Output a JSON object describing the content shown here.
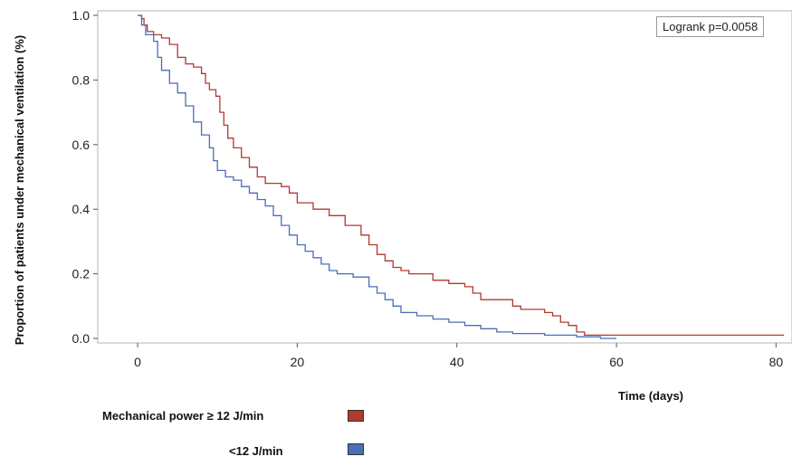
{
  "chart_data": {
    "type": "line",
    "ylabel": "Proportion of patients under mechanical ventilation (%)",
    "xlabel": "Time (days)",
    "xlim": [
      -5,
      82
    ],
    "ylim": [
      0,
      1.0
    ],
    "x_ticks": [
      0,
      20,
      40,
      60,
      80
    ],
    "y_ticks": [
      0.0,
      0.2,
      0.4,
      0.6,
      0.8,
      1.0
    ],
    "x_tick_labels": [
      "0",
      "20",
      "40",
      "60",
      "80"
    ],
    "y_tick_labels": [
      "0.0",
      "0.2",
      "0.4",
      "0.6",
      "0.8",
      "1.0"
    ],
    "annotation": "Logrank p=0.0058",
    "grid": false,
    "series": [
      {
        "name": "Mechanical power ≥ 12 J/min",
        "color": "#b03a2e",
        "step": true,
        "points": [
          [
            0,
            1.0
          ],
          [
            0.5,
            0.99
          ],
          [
            0.8,
            0.97
          ],
          [
            1.2,
            0.95
          ],
          [
            2,
            0.94
          ],
          [
            3,
            0.93
          ],
          [
            4,
            0.91
          ],
          [
            5,
            0.87
          ],
          [
            6,
            0.85
          ],
          [
            7,
            0.84
          ],
          [
            8,
            0.82
          ],
          [
            8.5,
            0.79
          ],
          [
            9,
            0.77
          ],
          [
            9.8,
            0.75
          ],
          [
            10.3,
            0.7
          ],
          [
            10.8,
            0.66
          ],
          [
            11.3,
            0.62
          ],
          [
            12,
            0.59
          ],
          [
            13,
            0.56
          ],
          [
            14,
            0.53
          ],
          [
            15,
            0.5
          ],
          [
            16,
            0.48
          ],
          [
            18,
            0.47
          ],
          [
            19,
            0.45
          ],
          [
            20,
            0.42
          ],
          [
            22,
            0.4
          ],
          [
            24,
            0.38
          ],
          [
            26,
            0.35
          ],
          [
            28,
            0.32
          ],
          [
            29,
            0.29
          ],
          [
            30,
            0.26
          ],
          [
            31,
            0.24
          ],
          [
            32,
            0.22
          ],
          [
            33,
            0.21
          ],
          [
            34,
            0.2
          ],
          [
            37,
            0.18
          ],
          [
            39,
            0.17
          ],
          [
            41,
            0.16
          ],
          [
            42,
            0.14
          ],
          [
            43,
            0.12
          ],
          [
            47,
            0.1
          ],
          [
            48,
            0.09
          ],
          [
            51,
            0.08
          ],
          [
            52,
            0.07
          ],
          [
            53,
            0.05
          ],
          [
            54,
            0.04
          ],
          [
            55,
            0.02
          ],
          [
            56,
            0.01
          ],
          [
            81,
            0.01
          ]
        ]
      },
      {
        "name": "<12 J/min",
        "color": "#4a6fb8",
        "step": true,
        "points": [
          [
            0,
            1.0
          ],
          [
            0.5,
            0.97
          ],
          [
            1,
            0.94
          ],
          [
            2,
            0.92
          ],
          [
            2.5,
            0.87
          ],
          [
            3,
            0.83
          ],
          [
            4,
            0.79
          ],
          [
            5,
            0.76
          ],
          [
            6,
            0.72
          ],
          [
            7,
            0.67
          ],
          [
            8,
            0.63
          ],
          [
            9,
            0.59
          ],
          [
            9.5,
            0.55
          ],
          [
            10,
            0.52
          ],
          [
            11,
            0.5
          ],
          [
            12,
            0.49
          ],
          [
            13,
            0.47
          ],
          [
            14,
            0.45
          ],
          [
            15,
            0.43
          ],
          [
            16,
            0.41
          ],
          [
            17,
            0.38
          ],
          [
            18,
            0.35
          ],
          [
            19,
            0.32
          ],
          [
            20,
            0.29
          ],
          [
            21,
            0.27
          ],
          [
            22,
            0.25
          ],
          [
            23,
            0.23
          ],
          [
            24,
            0.21
          ],
          [
            25,
            0.2
          ],
          [
            27,
            0.19
          ],
          [
            29,
            0.16
          ],
          [
            30,
            0.14
          ],
          [
            31,
            0.12
          ],
          [
            32,
            0.1
          ],
          [
            33,
            0.08
          ],
          [
            35,
            0.07
          ],
          [
            37,
            0.06
          ],
          [
            39,
            0.05
          ],
          [
            41,
            0.04
          ],
          [
            43,
            0.03
          ],
          [
            45,
            0.02
          ],
          [
            47,
            0.015
          ],
          [
            51,
            0.01
          ],
          [
            55,
            0.005
          ],
          [
            58,
            0.0
          ],
          [
            60,
            0.0
          ]
        ]
      }
    ]
  }
}
